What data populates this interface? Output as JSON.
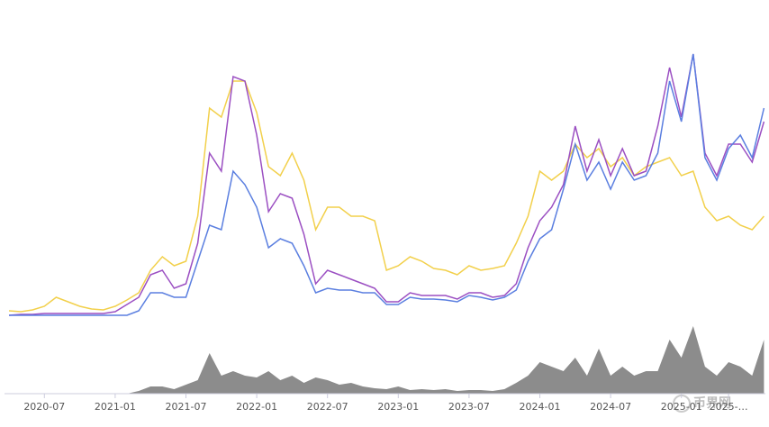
{
  "chart_data": [
    {
      "type": "line",
      "x": [
        "2020-04",
        "2020-05",
        "2020-06",
        "2020-07",
        "2020-08",
        "2020-09",
        "2020-10",
        "2020-11",
        "2020-12",
        "2021-01",
        "2021-02",
        "2021-03",
        "2021-04",
        "2021-05",
        "2021-06",
        "2021-07",
        "2021-08",
        "2021-09",
        "2021-10",
        "2021-11",
        "2021-12",
        "2022-01",
        "2022-02",
        "2022-03",
        "2022-04",
        "2022-05",
        "2022-06",
        "2022-07",
        "2022-08",
        "2022-09",
        "2022-10",
        "2022-11",
        "2022-12",
        "2023-01",
        "2023-02",
        "2023-03",
        "2023-04",
        "2023-05",
        "2023-06",
        "2023-07",
        "2023-08",
        "2023-09",
        "2023-10",
        "2023-11",
        "2023-12",
        "2024-01",
        "2024-02",
        "2024-03",
        "2024-04",
        "2024-05",
        "2024-06",
        "2024-07",
        "2024-08",
        "2024-09",
        "2024-10",
        "2024-11",
        "2024-12",
        "2025-01",
        "2025-02",
        "2025-03",
        "2025-04",
        "2025-05",
        "2025-06",
        "2025-07",
        "2025-08"
      ],
      "ylim": [
        0,
        300
      ],
      "series": [
        {
          "color": "#f2d04b",
          "values": [
            5,
            4,
            6,
            10,
            20,
            15,
            10,
            7,
            6,
            10,
            17,
            25,
            50,
            65,
            55,
            60,
            110,
            230,
            220,
            260,
            260,
            225,
            165,
            155,
            180,
            150,
            95,
            120,
            120,
            110,
            110,
            105,
            50,
            55,
            65,
            60,
            52,
            50,
            45,
            55,
            50,
            52,
            55,
            80,
            110,
            160,
            150,
            160,
            190,
            175,
            185,
            165,
            175,
            155,
            165,
            170,
            175,
            155,
            160,
            120,
            105,
            110,
            100,
            95,
            110
          ]
        },
        {
          "color": "#9b4fc2",
          "values": [
            0,
            1,
            1,
            2,
            2,
            2,
            2,
            2,
            2,
            4,
            12,
            20,
            45,
            50,
            30,
            35,
            80,
            180,
            160,
            265,
            260,
            200,
            115,
            135,
            130,
            90,
            35,
            50,
            45,
            40,
            35,
            30,
            15,
            15,
            25,
            22,
            22,
            22,
            18,
            25,
            25,
            20,
            22,
            35,
            75,
            105,
            120,
            145,
            210,
            160,
            195,
            155,
            185,
            155,
            160,
            210,
            275,
            220,
            290,
            180,
            155,
            190,
            190,
            170,
            215
          ]
        },
        {
          "color": "#5b7fe0",
          "values": [
            0,
            0,
            0,
            0,
            0,
            0,
            0,
            0,
            0,
            0,
            0,
            5,
            25,
            25,
            20,
            20,
            60,
            100,
            95,
            160,
            145,
            120,
            75,
            85,
            80,
            55,
            25,
            30,
            28,
            28,
            25,
            25,
            12,
            12,
            20,
            18,
            18,
            17,
            15,
            22,
            20,
            17,
            20,
            28,
            60,
            85,
            95,
            140,
            190,
            150,
            170,
            140,
            170,
            150,
            155,
            180,
            260,
            215,
            290,
            175,
            150,
            185,
            200,
            175,
            230
          ]
        }
      ]
    },
    {
      "type": "area",
      "x": [
        "2020-04",
        "2020-05",
        "2020-06",
        "2020-07",
        "2020-08",
        "2020-09",
        "2020-10",
        "2020-11",
        "2020-12",
        "2021-01",
        "2021-02",
        "2021-03",
        "2021-04",
        "2021-05",
        "2021-06",
        "2021-07",
        "2021-08",
        "2021-09",
        "2021-10",
        "2021-11",
        "2021-12",
        "2022-01",
        "2022-02",
        "2022-03",
        "2022-04",
        "2022-05",
        "2022-06",
        "2022-07",
        "2022-08",
        "2022-09",
        "2022-10",
        "2022-11",
        "2022-12",
        "2023-01",
        "2023-02",
        "2023-03",
        "2023-04",
        "2023-05",
        "2023-06",
        "2023-07",
        "2023-08",
        "2023-09",
        "2023-10",
        "2023-11",
        "2023-12",
        "2024-01",
        "2024-02",
        "2024-03",
        "2024-04",
        "2024-05",
        "2024-06",
        "2024-07",
        "2024-08",
        "2024-09",
        "2024-10",
        "2024-11",
        "2024-12",
        "2025-01",
        "2025-02",
        "2025-03",
        "2025-04",
        "2025-05",
        "2025-06",
        "2025-07",
        "2025-08"
      ],
      "ylim": [
        0,
        100
      ],
      "color": "#8c8c8c",
      "values": [
        0,
        0,
        0,
        0,
        0,
        0,
        0,
        0,
        0,
        0,
        0,
        3,
        8,
        8,
        5,
        10,
        15,
        45,
        20,
        25,
        20,
        18,
        25,
        15,
        20,
        12,
        18,
        15,
        10,
        12,
        8,
        6,
        5,
        8,
        4,
        5,
        4,
        5,
        3,
        4,
        4,
        3,
        5,
        12,
        20,
        35,
        30,
        25,
        40,
        20,
        50,
        20,
        30,
        20,
        25,
        25,
        60,
        40,
        75,
        30,
        20,
        35,
        30,
        20,
        60
      ],
      "xticks": [
        "2020-07",
        "2021-01",
        "2021-07",
        "2022-01",
        "2022-07",
        "2023-01",
        "2023-07",
        "2024-01",
        "2024-07",
        "2025-01",
        {
          "value": "2025-05",
          "label": "2025-…"
        }
      ],
      "watermark": "币界网"
    }
  ]
}
